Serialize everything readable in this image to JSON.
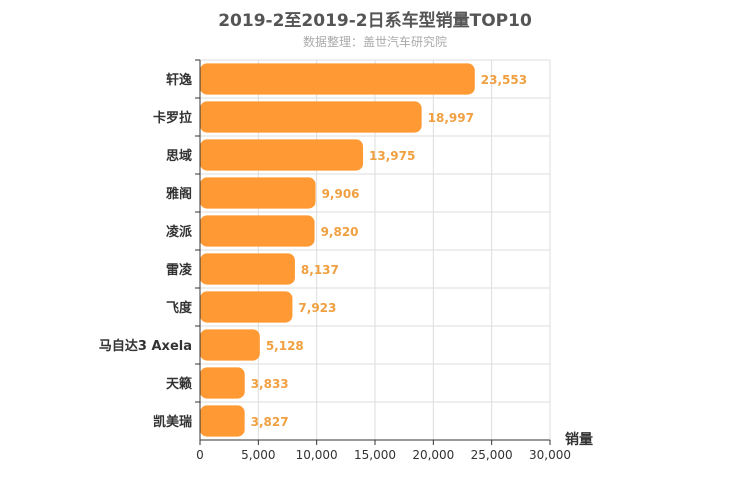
{
  "chart_data": {
    "type": "bar",
    "orientation": "horizontal",
    "title": "2019-2至2019-2日系车型销量TOP10",
    "subtitle": "数据整理：盖世汽车研究院",
    "xlabel": "销量",
    "xlim": [
      0,
      30000
    ],
    "xticks": [
      "0",
      "5,000",
      "10,000",
      "15,000",
      "20,000",
      "25,000",
      "30,000"
    ],
    "grid": true,
    "color": "#ff9933",
    "categories": [
      "轩逸",
      "卡罗拉",
      "思域",
      "雅阁",
      "凌派",
      "雷凌",
      "飞度",
      "马自达3 Axela",
      "天籁",
      "凯美瑞"
    ],
    "values": [
      23553,
      18997,
      13975,
      9906,
      9820,
      8137,
      7923,
      5128,
      3833,
      3827
    ],
    "value_labels": [
      "23,553",
      "18,997",
      "13,975",
      "9,906",
      "9,820",
      "8,137",
      "7,923",
      "5,128",
      "3,833",
      "3,827"
    ]
  }
}
